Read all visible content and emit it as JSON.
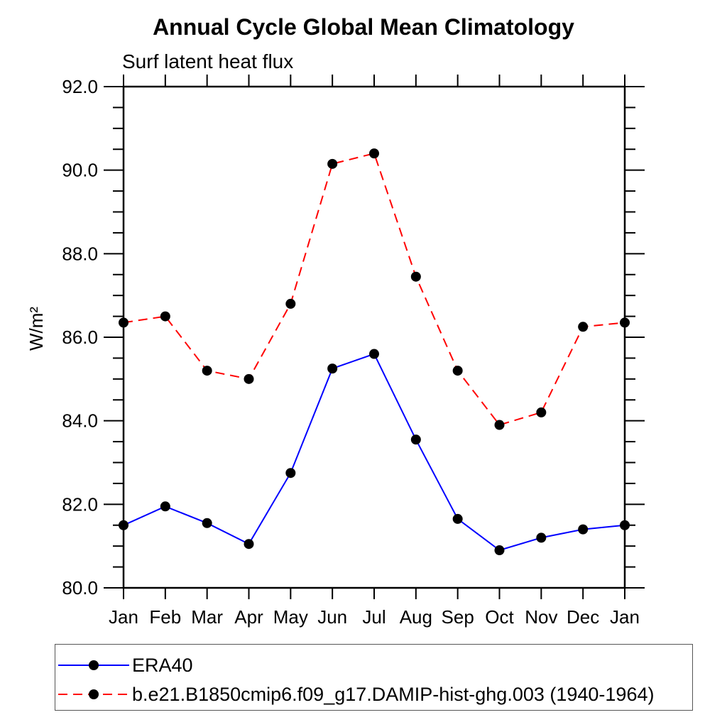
{
  "title": "Annual Cycle Global Mean Climatology",
  "subtitle": "Surf latent heat flux",
  "ylabel": "W/m²",
  "colors": {
    "era40_line": "#0000ff",
    "model_line": "#ff0000",
    "marker": "#000000",
    "axis": "#000000",
    "legend_border": "#555555"
  },
  "legend": {
    "position": "bottom-left",
    "items": [
      {
        "label": "ERA40",
        "line_style": "solid",
        "color": "#0000ff"
      },
      {
        "label": "b.e21.B1850cmip6.f09_g17.DAMIP-hist-ghg.003 (1940-1964)",
        "line_style": "dashed",
        "color": "#ff0000"
      }
    ]
  },
  "chart_data": {
    "type": "line",
    "title": "Annual Cycle Global Mean Climatology",
    "subtitle": "Surf latent heat flux",
    "xlabel": "",
    "ylabel": "W/m²",
    "x_categories": [
      "Jan",
      "Feb",
      "Mar",
      "Apr",
      "May",
      "Jun",
      "Jul",
      "Aug",
      "Sep",
      "Oct",
      "Nov",
      "Dec",
      "Jan"
    ],
    "series": [
      {
        "name": "ERA40",
        "color": "#0000ff",
        "style": "solid",
        "marker": "filled-circle",
        "values": [
          81.5,
          81.95,
          81.55,
          81.05,
          82.75,
          85.25,
          85.6,
          83.55,
          81.65,
          80.9,
          81.2,
          81.4,
          81.5
        ]
      },
      {
        "name": "b.e21.B1850cmip6.f09_g17.DAMIP-hist-ghg.003 (1940-1964)",
        "color": "#ff0000",
        "style": "dashed",
        "marker": "filled-circle",
        "values": [
          86.35,
          86.5,
          85.2,
          85.0,
          86.8,
          90.15,
          90.4,
          87.45,
          85.2,
          83.9,
          84.2,
          86.25,
          86.35
        ]
      }
    ],
    "ylim": [
      80.0,
      92.0
    ],
    "ytick_major_values": [
      80.0,
      82.0,
      84.0,
      86.0,
      88.0,
      90.0,
      92.0
    ],
    "ytick_major_labels": [
      "80.0",
      "82.0",
      "84.0",
      "86.0",
      "88.0",
      "90.0",
      "92.0"
    ],
    "ytick_minor_step": 0.5,
    "grid": false,
    "legend_position": "bottom-left"
  }
}
